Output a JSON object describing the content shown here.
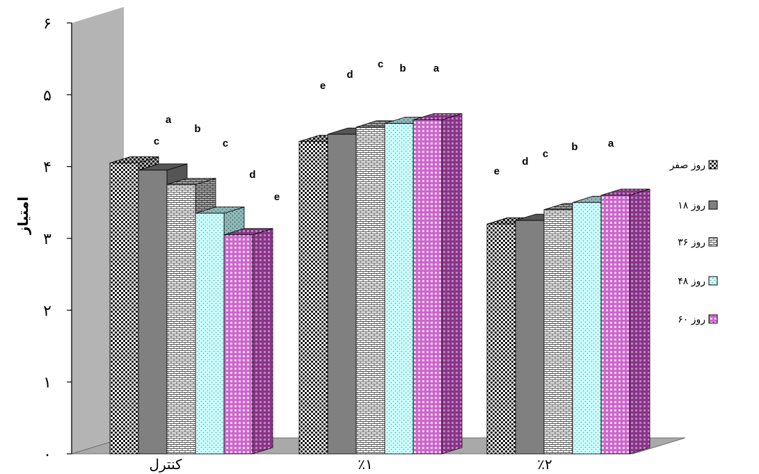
{
  "chart_data": {
    "type": "bar",
    "style": "3d-clustered",
    "title": "",
    "xlabel": "",
    "ylabel": "امتیاز",
    "ylim": [
      0,
      6
    ],
    "yticks": [
      "۰",
      "۱",
      "۲",
      "۳",
      "۴",
      "۵",
      "۶"
    ],
    "categories": [
      "کنترل",
      "٪۱",
      "٪۲"
    ],
    "legend_position": "right",
    "grid": false,
    "series": [
      {
        "name": "روز صفر",
        "values": [
          4.05,
          4.35,
          3.2
        ],
        "letters": [
          "c",
          "e",
          "e"
        ],
        "pattern": "checker",
        "color": "#000000"
      },
      {
        "name": "روز ۱۸",
        "values": [
          3.95,
          4.45,
          3.25
        ],
        "letters": [
          "a",
          "d",
          "d"
        ],
        "pattern": "solid",
        "color": "#808080"
      },
      {
        "name": "روز ۳۶",
        "values": [
          3.75,
          4.55,
          3.4
        ],
        "letters": [
          "b",
          "c",
          "c"
        ],
        "pattern": "brick",
        "color": "#7f7f7f"
      },
      {
        "name": "روز ۴۸",
        "values": [
          3.35,
          4.6,
          3.5
        ],
        "letters": [
          "c",
          "b",
          "b"
        ],
        "pattern": "dots",
        "color": "#ccffff"
      },
      {
        "name": "روز ۶۰",
        "values": [
          3.05,
          4.65,
          3.6
        ],
        "letters": [
          "d",
          "a",
          "a"
        ],
        "pattern": "grid",
        "color": "#993399"
      }
    ],
    "extra_letters": [
      {
        "category": 0,
        "text": "e"
      }
    ]
  }
}
